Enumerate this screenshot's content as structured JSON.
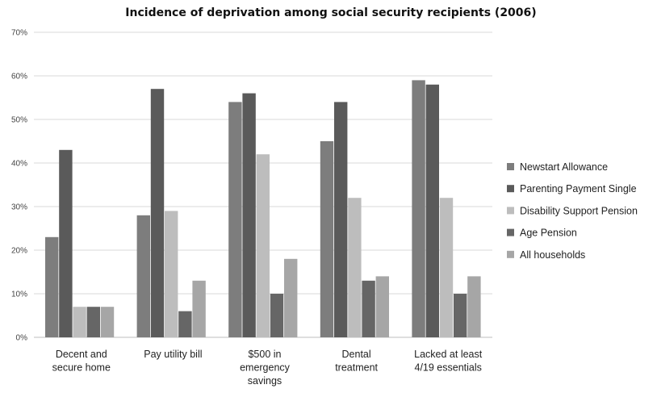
{
  "chart_data": {
    "type": "bar",
    "title": "Incidence of deprivation among social security recipients (2006)",
    "xlabel": "",
    "ylabel": "",
    "ylim": [
      0,
      70
    ],
    "yticks": [
      "0%",
      "10%",
      "20%",
      "30%",
      "40%",
      "50%",
      "60%",
      "70%"
    ],
    "grid": true,
    "legend_position": "right",
    "categories": [
      [
        "Decent and",
        "secure home"
      ],
      [
        "Pay utility bill"
      ],
      [
        "$500 in",
        "emergency",
        "savings"
      ],
      [
        "Dental",
        "treatment"
      ],
      [
        "Lacked at least",
        "4/19 essentials"
      ]
    ],
    "series": [
      {
        "name": "Newstart Allowance",
        "color": "#7d7d7d",
        "values": [
          23,
          28,
          54,
          45,
          59
        ]
      },
      {
        "name": "Parenting Payment Single",
        "color": "#5a5a5a",
        "values": [
          43,
          57,
          56,
          54,
          58
        ]
      },
      {
        "name": "Disability Support Pension",
        "color": "#bdbdbd",
        "values": [
          7,
          29,
          42,
          32,
          32
        ]
      },
      {
        "name": "Age Pension",
        "color": "#666666",
        "values": [
          7,
          6,
          10,
          13,
          10
        ]
      },
      {
        "name": "All households",
        "color": "#a6a6a6",
        "values": [
          7,
          13,
          18,
          14,
          14
        ]
      }
    ]
  }
}
